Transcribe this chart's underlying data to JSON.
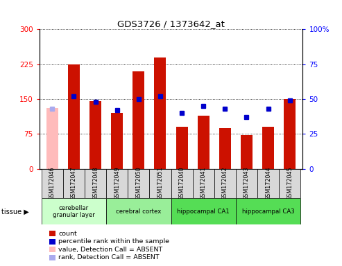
{
  "title": "GDS3726 / 1373642_at",
  "samples": [
    "GSM172046",
    "GSM172047",
    "GSM172048",
    "GSM172049",
    "GSM172050",
    "GSM172051",
    "GSM172040",
    "GSM172041",
    "GSM172042",
    "GSM172043",
    "GSM172044",
    "GSM172045"
  ],
  "count_present": [
    null,
    225,
    145,
    120,
    210,
    240,
    90,
    115,
    88,
    72,
    90,
    150
  ],
  "count_absent": [
    130,
    null,
    null,
    null,
    null,
    null,
    null,
    null,
    null,
    null,
    null,
    null
  ],
  "rank_present": [
    null,
    52,
    48,
    42,
    50,
    52,
    40,
    45,
    43,
    37,
    43,
    49
  ],
  "rank_absent": [
    43,
    null,
    null,
    null,
    null,
    null,
    null,
    null,
    null,
    null,
    null,
    null
  ],
  "ylim_left": [
    0,
    300
  ],
  "ylim_right": [
    0,
    100
  ],
  "yticks_left": [
    0,
    75,
    150,
    225,
    300
  ],
  "ytick_labels_left": [
    "0",
    "75",
    "150",
    "225",
    "300"
  ],
  "yticks_right": [
    0,
    25,
    50,
    75,
    100
  ],
  "ytick_labels_right": [
    "0",
    "25",
    "50",
    "75",
    "100%"
  ],
  "bar_color": "#cc1100",
  "bar_absent_color": "#ffbbbb",
  "dot_color": "#0000cc",
  "dot_absent_color": "#aaaaee",
  "tissue_groups": [
    {
      "label": "cerebellar\ngranular layer",
      "start": 0,
      "end": 2,
      "color": "#ccffcc"
    },
    {
      "label": "cerebral cortex",
      "start": 3,
      "end": 5,
      "color": "#99ee99"
    },
    {
      "label": "hippocampal CA1",
      "start": 6,
      "end": 8,
      "color": "#55dd55"
    },
    {
      "label": "hippocampal CA3",
      "start": 9,
      "end": 11,
      "color": "#55dd55"
    }
  ],
  "legend_items": [
    {
      "label": "count",
      "color": "#cc1100"
    },
    {
      "label": "percentile rank within the sample",
      "color": "#0000cc"
    },
    {
      "label": "value, Detection Call = ABSENT",
      "color": "#ffbbbb"
    },
    {
      "label": "rank, Detection Call = ABSENT",
      "color": "#aaaaee"
    }
  ],
  "figsize": [
    4.93,
    3.84
  ],
  "dpi": 100
}
